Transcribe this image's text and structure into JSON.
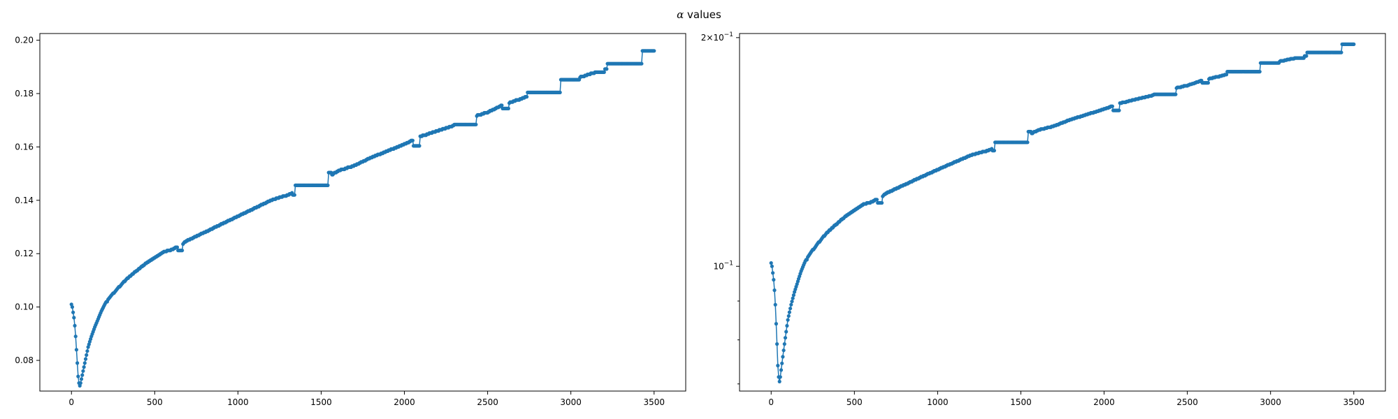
{
  "figure": {
    "title_symbol": "α",
    "title_text": " values"
  },
  "chart_data": [
    {
      "type": "line",
      "yscale": "linear",
      "xlim": [
        -190,
        3690
      ],
      "ylim": [
        0.0685,
        0.2025
      ],
      "grid": false,
      "xticks": [
        0,
        500,
        1000,
        1500,
        2000,
        2500,
        3000,
        3500
      ],
      "xtick_labels": [
        "0",
        "500",
        "1000",
        "1500",
        "2000",
        "2500",
        "3000",
        "3500"
      ],
      "yticks": [
        0.08,
        0.1,
        0.12,
        0.14,
        0.16,
        0.18,
        0.2
      ],
      "ytick_labels": [
        "0.08",
        "0.10",
        "0.12",
        "0.14",
        "0.16",
        "0.18",
        "0.20"
      ],
      "marker": "circle",
      "color": "#1f77b4",
      "x_range": [
        0,
        3500
      ],
      "knots": [
        [
          0,
          0.101
        ],
        [
          5,
          0.1
        ],
        [
          10,
          0.098
        ],
        [
          15,
          0.096
        ],
        [
          20,
          0.093
        ],
        [
          25,
          0.089
        ],
        [
          30,
          0.084
        ],
        [
          35,
          0.079
        ],
        [
          40,
          0.074
        ],
        [
          45,
          0.0715
        ],
        [
          50,
          0.0705
        ],
        [
          55,
          0.0715
        ],
        [
          60,
          0.073
        ],
        [
          70,
          0.076
        ],
        [
          80,
          0.079
        ],
        [
          90,
          0.082
        ],
        [
          100,
          0.085
        ],
        [
          120,
          0.089
        ],
        [
          140,
          0.0925
        ],
        [
          160,
          0.0955
        ],
        [
          180,
          0.0985
        ],
        [
          200,
          0.101
        ],
        [
          250,
          0.105
        ],
        [
          300,
          0.1085
        ],
        [
          350,
          0.1115
        ],
        [
          400,
          0.114
        ],
        [
          450,
          0.1165
        ],
        [
          500,
          0.1185
        ],
        [
          550,
          0.1205
        ],
        [
          600,
          0.1215
        ],
        [
          650,
          0.123
        ],
        [
          700,
          0.125
        ],
        [
          800,
          0.128
        ],
        [
          900,
          0.131
        ],
        [
          1000,
          0.134
        ],
        [
          1100,
          0.137
        ],
        [
          1200,
          0.14
        ],
        [
          1300,
          0.142
        ],
        [
          1400,
          0.145
        ],
        [
          1500,
          0.147
        ],
        [
          1600,
          0.151
        ],
        [
          1700,
          0.153
        ],
        [
          1800,
          0.156
        ],
        [
          1900,
          0.1585
        ],
        [
          2000,
          0.161
        ],
        [
          2100,
          0.164
        ],
        [
          2200,
          0.166
        ],
        [
          2300,
          0.168
        ],
        [
          2400,
          0.171
        ],
        [
          2500,
          0.173
        ],
        [
          2600,
          0.176
        ],
        [
          2700,
          0.178
        ],
        [
          2800,
          0.1805
        ],
        [
          2900,
          0.182
        ],
        [
          3000,
          0.185
        ],
        [
          3100,
          0.187
        ],
        [
          3200,
          0.189
        ],
        [
          3300,
          0.191
        ],
        [
          3400,
          0.193
        ],
        [
          3500,
          0.196
        ]
      ],
      "plateaus": [
        {
          "x_start": 640,
          "x_end": 665,
          "y": 0.121
        },
        {
          "x_start": 1330,
          "x_end": 1345,
          "y": 0.142
        },
        {
          "x_start": 1345,
          "x_end": 1545,
          "y": 0.1455
        },
        {
          "x_start": 1545,
          "x_end": 1560,
          "y": 0.1505
        },
        {
          "x_start": 2055,
          "x_end": 2090,
          "y": 0.1605
        },
        {
          "x_start": 2300,
          "x_end": 2430,
          "y": 0.1685
        },
        {
          "x_start": 2590,
          "x_end": 2625,
          "y": 0.1745
        },
        {
          "x_start": 2740,
          "x_end": 2940,
          "y": 0.1805
        },
        {
          "x_start": 2940,
          "x_end": 3050,
          "y": 0.185
        },
        {
          "x_start": 3160,
          "x_end": 3200,
          "y": 0.188
        },
        {
          "x_start": 3220,
          "x_end": 3430,
          "y": 0.191
        },
        {
          "x_start": 3430,
          "x_end": 3500,
          "y": 0.196
        }
      ]
    },
    {
      "type": "line",
      "yscale": "log",
      "xlim": [
        -190,
        3690
      ],
      "ylim": [
        0.0685,
        0.2025
      ],
      "grid": false,
      "xticks": [
        0,
        500,
        1000,
        1500,
        2000,
        2500,
        3000,
        3500
      ],
      "xtick_labels": [
        "0",
        "500",
        "1000",
        "1500",
        "2000",
        "2500",
        "3000",
        "3500"
      ],
      "yticks_major": [
        0.1,
        0.2
      ],
      "ytick_label_major_1": {
        "base": "10",
        "exp": "−1"
      },
      "ytick_label_major_2": {
        "coef": "2×",
        "base": "10",
        "exp": "−1"
      },
      "yticks_minor": [
        0.07,
        0.08,
        0.09
      ],
      "marker": "circle",
      "color": "#1f77b4",
      "same_series_as_left": true
    }
  ]
}
